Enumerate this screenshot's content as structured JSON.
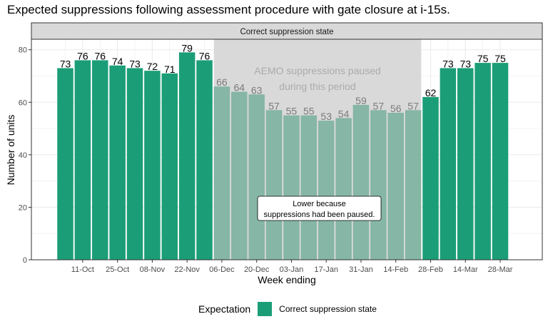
{
  "chart_data": {
    "type": "bar",
    "title": "Expected suppressions following assessment procedure with gate closure at i-15s.",
    "facet_label": "Correct suppression state",
    "xlabel": "Week ending",
    "ylabel": "Number of units",
    "ylim": [
      0,
      84
    ],
    "y_ticks": [
      0,
      20,
      40,
      60,
      80
    ],
    "x_tick_labels": [
      "11-Oct",
      "25-Oct",
      "08-Nov",
      "22-Nov",
      "06-Dec",
      "20-Dec",
      "03-Jan",
      "17-Jan",
      "31-Jan",
      "14-Feb",
      "28-Feb",
      "14-Mar",
      "28-Mar"
    ],
    "values": [
      73,
      76,
      76,
      74,
      73,
      72,
      71,
      79,
      76,
      66,
      64,
      63,
      57,
      55,
      55,
      53,
      54,
      59,
      57,
      56,
      57,
      62,
      73,
      73,
      75,
      75
    ],
    "paused_bars": [
      9,
      10,
      11,
      12,
      13,
      14,
      15,
      16,
      17,
      18,
      19,
      20
    ],
    "paused_region_label": [
      "AEMO suppressions paused",
      "during this period"
    ],
    "annotation": [
      "Lower because",
      "suppressions had been paused."
    ],
    "legend": {
      "title": "Expectation",
      "label": "Correct suppression state"
    },
    "colors": {
      "bar": "#1b9e77",
      "bar_paused": "#86b6a5",
      "paused_region": "#d9d9d9",
      "panel_grid": "#ebebeb",
      "strip": "#d9d9d9"
    },
    "grid": true,
    "legend_position": "bottom"
  }
}
